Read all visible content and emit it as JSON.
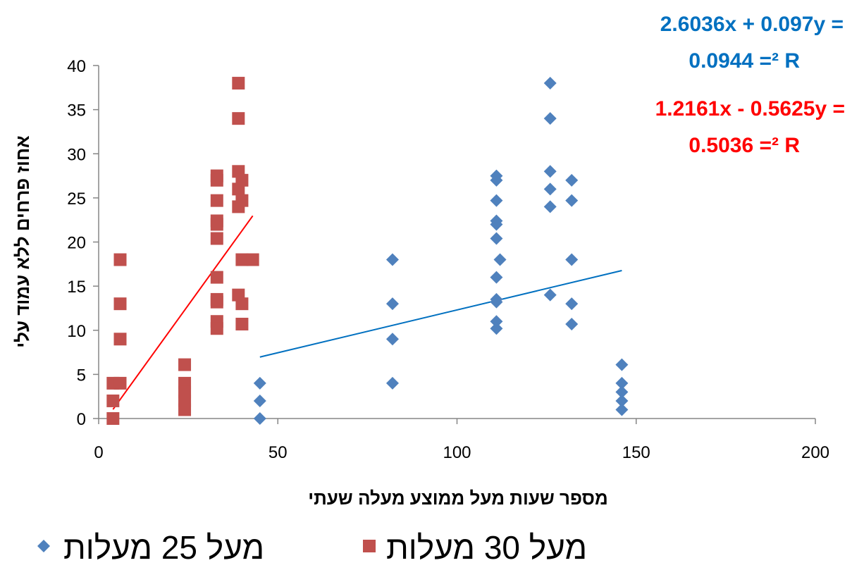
{
  "chart_data": {
    "type": "scatter",
    "xlabel": "מספר שעות מעל ממוצע מעלה שעתי",
    "ylabel": "אחוז פרחים ללא עמוד עלי",
    "xlim": [
      0,
      200
    ],
    "ylim": [
      0,
      40
    ],
    "x_ticks": [
      "0",
      "50",
      "100",
      "150",
      "200"
    ],
    "y_ticks": [
      "0",
      "5",
      "10",
      "15",
      "20",
      "25",
      "30",
      "35",
      "40"
    ],
    "grid": false,
    "legend_position": "bottom",
    "series": [
      {
        "name": "מעל 25 מעלות",
        "marker": "diamond",
        "color": "#4F81BD",
        "trendline_color": "#0070C0",
        "points": [
          [
            45,
            4
          ],
          [
            45,
            2
          ],
          [
            45,
            0
          ],
          [
            82,
            18
          ],
          [
            82,
            13
          ],
          [
            82,
            9
          ],
          [
            82,
            4
          ],
          [
            111,
            27.5
          ],
          [
            111,
            27
          ],
          [
            111,
            24.7
          ],
          [
            111,
            22.4
          ],
          [
            111,
            22
          ],
          [
            111,
            20.4
          ],
          [
            112,
            18
          ],
          [
            111,
            16
          ],
          [
            111,
            13.5
          ],
          [
            111,
            13.2
          ],
          [
            111,
            11
          ],
          [
            111,
            10.2
          ],
          [
            126,
            38
          ],
          [
            126,
            34
          ],
          [
            126,
            28
          ],
          [
            126,
            26
          ],
          [
            126,
            24
          ],
          [
            126,
            14
          ],
          [
            132,
            27
          ],
          [
            132,
            24.7
          ],
          [
            132,
            18
          ],
          [
            132,
            13
          ],
          [
            132,
            10.7
          ],
          [
            146,
            6.1
          ],
          [
            146,
            4
          ],
          [
            146,
            3
          ],
          [
            146,
            2
          ],
          [
            146,
            1
          ]
        ],
        "trendline": {
          "x_start": 45,
          "x_end": 146,
          "slope": 0.097,
          "intercept": 2.6036
        },
        "equation": {
          "line1": "2.6036x + 0.097y =",
          "line2": "0.0944 =² R"
        }
      },
      {
        "name": "מעל 30 מעלות",
        "marker": "square",
        "color": "#C0504D",
        "trendline_color": "#FF0000",
        "points": [
          [
            4,
            4
          ],
          [
            4,
            2
          ],
          [
            4,
            0
          ],
          [
            6,
            18
          ],
          [
            6,
            13
          ],
          [
            6,
            9
          ],
          [
            6,
            4
          ],
          [
            24,
            6.1
          ],
          [
            24,
            4
          ],
          [
            24,
            3
          ],
          [
            24,
            2
          ],
          [
            24,
            1
          ],
          [
            33,
            27.5
          ],
          [
            33,
            27
          ],
          [
            33,
            24.7
          ],
          [
            33,
            22.4
          ],
          [
            33,
            22
          ],
          [
            33,
            20.4
          ],
          [
            33,
            16
          ],
          [
            33,
            13.5
          ],
          [
            33,
            13.2
          ],
          [
            33,
            11
          ],
          [
            33,
            10.2
          ],
          [
            39,
            38
          ],
          [
            39,
            34
          ],
          [
            39,
            28
          ],
          [
            39,
            26
          ],
          [
            39,
            24
          ],
          [
            39,
            14
          ],
          [
            40,
            27
          ],
          [
            40,
            24.7
          ],
          [
            40,
            18
          ],
          [
            40,
            13
          ],
          [
            40,
            10.7
          ],
          [
            43,
            18
          ]
        ],
        "trendline": {
          "x_start": 4,
          "x_end": 43,
          "slope": 0.5625,
          "intercept": -1.2161
        },
        "equation": {
          "line1": "1.2161x - 0.5625y =",
          "line2": "0.5036 =² R"
        }
      }
    ]
  }
}
